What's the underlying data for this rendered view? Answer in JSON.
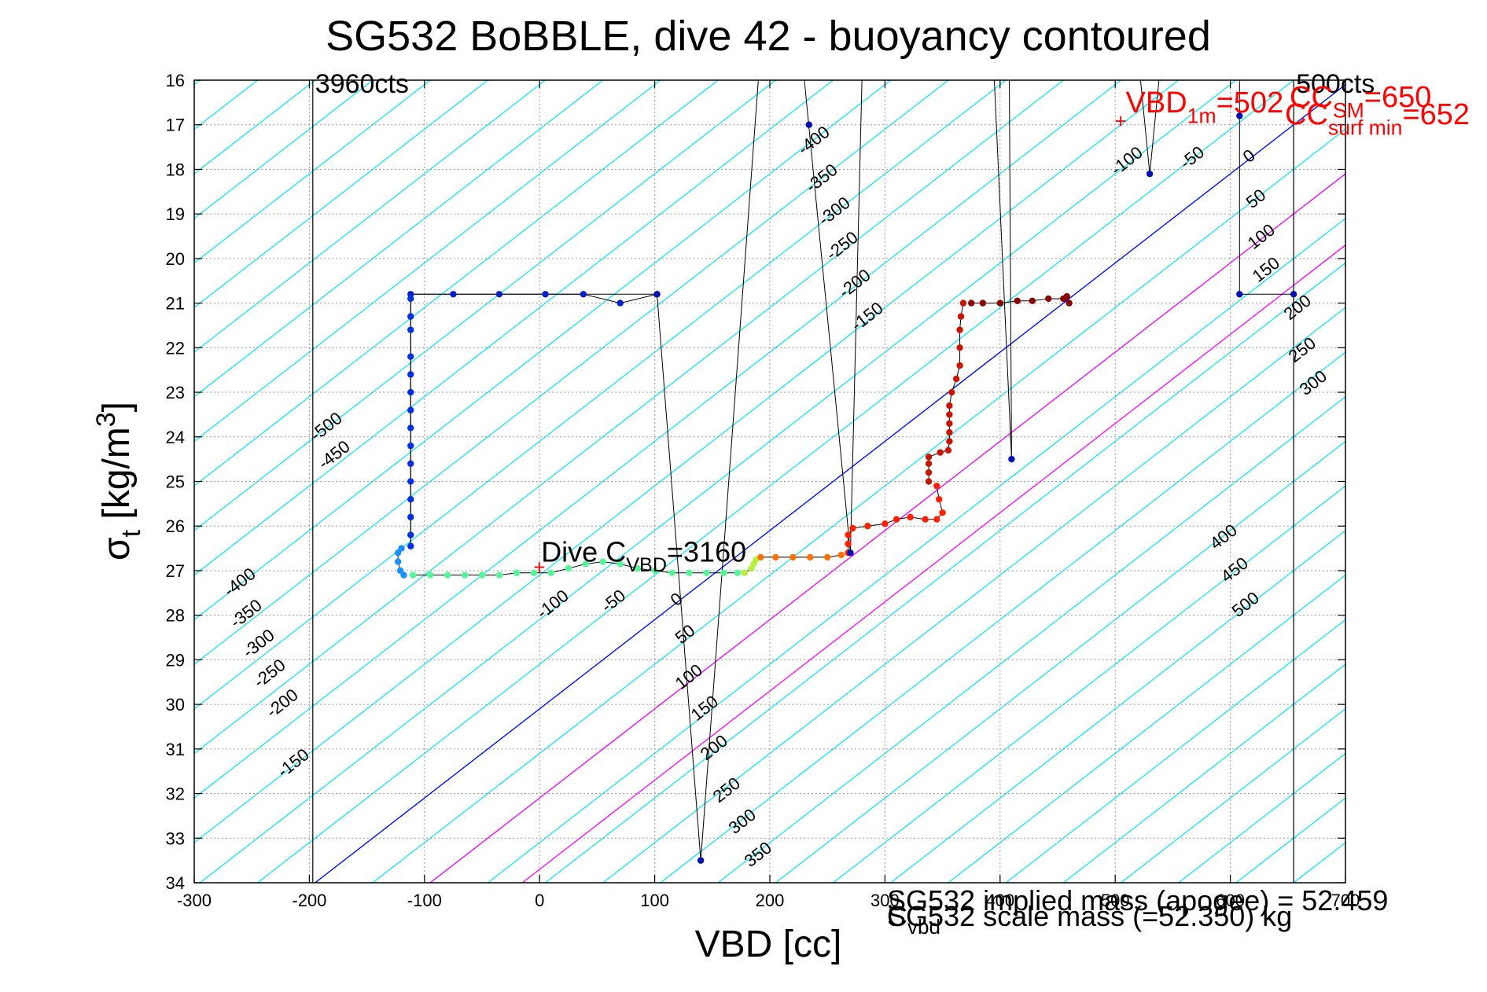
{
  "chart_data": {
    "type": "scatter",
    "title": "SG532 BoBBLE, dive 42 - buoyancy contoured",
    "xlabel": "VBD [cc]",
    "ylabel_main": "σ",
    "ylabel_sub": "t",
    "ylabel_rest": " [kg/m",
    "ylabel_sup": "3",
    "ylabel_end": "]",
    "xlim": [
      -300,
      700
    ],
    "ylim": [
      16,
      34
    ],
    "y_reversed": true,
    "grid": true,
    "x_ticks": [
      -300,
      -200,
      -100,
      0,
      100,
      200,
      300,
      400,
      500,
      600,
      700
    ],
    "y_ticks": [
      16,
      17,
      18,
      19,
      20,
      21,
      22,
      23,
      24,
      25,
      26,
      27,
      28,
      29,
      30,
      31,
      32,
      33,
      34
    ],
    "colors": {
      "contour": "#00e5f0",
      "zero_buoyancy": "#0000ff",
      "sm_lines": "#ff00ff",
      "annotation_red": "#ff0000",
      "text": "#000000"
    },
    "count_lines": [
      {
        "x": -197,
        "label": "3960cts"
      },
      {
        "x": 655,
        "label": "500cts"
      }
    ],
    "contours": {
      "slope_sigma_per_cc": 0.02,
      "spacing_cc": 50,
      "zero_line": {
        "x0": -195,
        "y0": 34
      },
      "sm_lines_x_at_34": [
        -95,
        -15
      ]
    },
    "contour_labels_left": [
      "-500",
      "-450",
      "-400",
      "-350",
      "-300",
      "-250",
      "-200",
      "-150"
    ],
    "contour_labels_mid": [
      "-100",
      "-50",
      "0",
      "50",
      "100",
      "150",
      "200",
      "250",
      "300",
      "350"
    ],
    "contour_labels_upper": [
      "-400",
      "-350",
      "-300",
      "-250",
      "-200",
      "-150"
    ],
    "contour_labels_topright": [
      "-100",
      "-50",
      "0",
      "50",
      "100",
      "150",
      "200",
      "250",
      "300"
    ],
    "contour_labels_right": [
      "400",
      "450",
      "500"
    ],
    "annotations": {
      "dive_c": {
        "prefix": "Dive C",
        "sub": "VBD",
        "suffix": "=3160",
        "x": 0,
        "y": 26.9
      },
      "vbd_1m": {
        "prefix": "VBD",
        "sub": "1m",
        "suffix": "=502",
        "x": 505,
        "y": 16.9
      },
      "cc_sm": {
        "prefix": "CC",
        "sub": "SM",
        "suffix": "=650"
      },
      "cc_surf": {
        "prefix": "CC",
        "sub": "surf min",
        "suffix": "=652"
      },
      "implied_mass": "SG532 implied mass (apogee) = 52.459",
      "scale_mass": {
        "prefix": "C",
        "sub": "vbd",
        "text": "SG532 scale mass (=52.350) kg"
      }
    },
    "series": [
      {
        "points": [
          [
            -112,
            20.8
          ],
          [
            -75,
            20.8
          ],
          [
            -35,
            20.8
          ],
          [
            5,
            20.8
          ],
          [
            38,
            20.8
          ],
          [
            70,
            21.0
          ],
          [
            102,
            20.8
          ]
        ],
        "color": "#0020c8"
      },
      {
        "points": [
          [
            -112,
            20.9
          ],
          [
            -112,
            21.3
          ],
          [
            -112,
            21.6
          ],
          [
            -112,
            22.2
          ],
          [
            -112,
            22.6
          ],
          [
            -112,
            23.0
          ],
          [
            -112,
            23.4
          ],
          [
            -112,
            23.8
          ],
          [
            -112,
            24.2
          ],
          [
            -112,
            24.6
          ],
          [
            -112,
            25.0
          ],
          [
            -112,
            25.4
          ],
          [
            -112,
            25.8
          ],
          [
            -112,
            26.2
          ],
          [
            -112,
            26.45
          ]
        ],
        "color": "#0030e0"
      },
      {
        "points": [
          [
            -120,
            26.5
          ],
          [
            -123,
            26.6
          ],
          [
            -123,
            26.8
          ],
          [
            -121,
            27.0
          ],
          [
            -118,
            27.1
          ]
        ],
        "color": "#1a90ff"
      },
      {
        "points": [
          [
            -110,
            27.1
          ],
          [
            -95,
            27.1
          ],
          [
            -80,
            27.1
          ],
          [
            -65,
            27.1
          ],
          [
            -50,
            27.1
          ],
          [
            -35,
            27.1
          ],
          [
            -20,
            27.05
          ],
          [
            -5,
            27.05
          ],
          [
            10,
            27.05
          ],
          [
            25,
            26.95
          ],
          [
            40,
            26.85
          ],
          [
            55,
            26.8
          ],
          [
            70,
            26.85
          ],
          [
            85,
            26.95
          ],
          [
            100,
            27.0
          ],
          [
            115,
            27.05
          ],
          [
            130,
            27.05
          ],
          [
            145,
            27.05
          ],
          [
            160,
            27.05
          ],
          [
            172,
            27.05
          ]
        ],
        "color": "#55f59a"
      },
      {
        "points": [
          [
            178,
            27.05
          ],
          [
            184,
            26.95
          ],
          [
            186,
            26.85
          ],
          [
            188,
            26.75
          ]
        ],
        "color": "#b8f040"
      },
      {
        "points": [
          [
            192,
            26.7
          ],
          [
            205,
            26.7
          ],
          [
            220,
            26.7
          ],
          [
            235,
            26.7
          ],
          [
            250,
            26.7
          ],
          [
            262,
            26.65
          ]
        ],
        "color": "#ff7000"
      },
      {
        "points": [
          [
            268,
            26.6
          ],
          [
            268,
            26.4
          ],
          [
            268,
            26.2
          ],
          [
            272,
            26.05
          ],
          [
            285,
            26.0
          ],
          [
            300,
            25.95
          ],
          [
            310,
            25.85
          ],
          [
            322,
            25.8
          ],
          [
            335,
            25.85
          ],
          [
            345,
            25.85
          ],
          [
            350,
            25.7
          ],
          [
            347,
            25.4
          ],
          [
            345,
            25.1
          ]
        ],
        "color": "#ff2000"
      },
      {
        "points": [
          [
            338,
            25.0
          ],
          [
            338,
            24.8
          ],
          [
            338,
            24.6
          ],
          [
            338,
            24.45
          ],
          [
            348,
            24.35
          ],
          [
            355,
            24.3
          ],
          [
            356,
            24.1
          ],
          [
            356,
            23.9
          ],
          [
            356,
            23.7
          ],
          [
            356,
            23.5
          ],
          [
            356,
            23.3
          ],
          [
            358,
            23.0
          ],
          [
            362,
            22.7
          ],
          [
            365,
            22.4
          ],
          [
            365,
            22.0
          ],
          [
            365,
            21.6
          ],
          [
            366,
            21.3
          ],
          [
            368,
            21.0
          ]
        ],
        "color": "#c81400"
      },
      {
        "points": [
          [
            375,
            21.0
          ],
          [
            385,
            21.0
          ],
          [
            400,
            21.0
          ],
          [
            415,
            20.95
          ],
          [
            428,
            20.95
          ],
          [
            442,
            20.9
          ],
          [
            455,
            20.9
          ],
          [
            458,
            20.85
          ],
          [
            460,
            21.0
          ]
        ],
        "color": "#8c0000"
      }
    ],
    "sparse_points": [
      [
        102,
        20.8
      ],
      [
        140,
        33.5
      ],
      [
        234,
        17.0
      ],
      [
        270,
        26.6
      ],
      [
        410,
        24.5
      ],
      [
        530,
        18.1
      ],
      [
        608,
        16.8
      ],
      [
        608,
        20.8
      ],
      [
        655,
        20.8
      ]
    ],
    "trace_line": [
      [
        -112,
        26.45
      ],
      [
        -112,
        20.8
      ],
      [
        102,
        20.8
      ],
      [
        140,
        33.5
      ],
      [
        190,
        16.0
      ]
    ],
    "trace_line2": [
      [
        230,
        16.0
      ],
      [
        270,
        26.6
      ],
      [
        280,
        16.0
      ]
    ],
    "trace_line3": [
      [
        395,
        16.0
      ],
      [
        410,
        24.5
      ],
      [
        408,
        16.0
      ]
    ],
    "trace_line4": [
      [
        522,
        16.0
      ],
      [
        530,
        18.1
      ],
      [
        538,
        16.0
      ]
    ],
    "trace_line5": [
      [
        608,
        16.0
      ],
      [
        608,
        20.8
      ],
      [
        655,
        20.8
      ]
    ]
  }
}
